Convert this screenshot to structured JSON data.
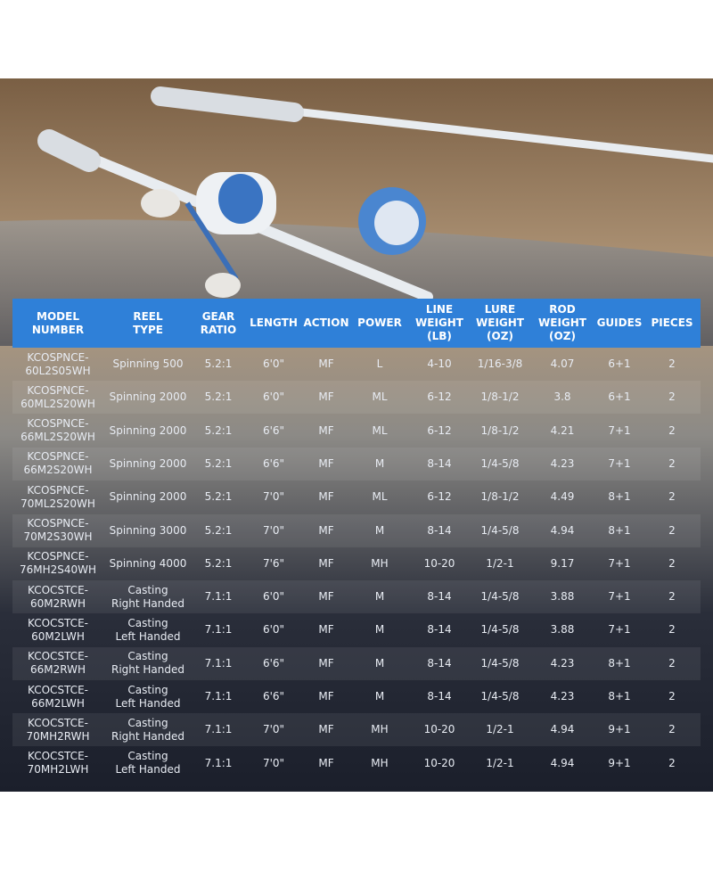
{
  "table": {
    "header": [
      [
        "MODEL",
        "NUMBER"
      ],
      [
        "REEL",
        "TYPE"
      ],
      [
        "GEAR",
        "RATIO"
      ],
      [
        "LENGTH"
      ],
      [
        "ACTION"
      ],
      [
        "POWER"
      ],
      [
        "LINE",
        "WEIGHT",
        "(LB)"
      ],
      [
        "LURE",
        "WEIGHT",
        "(OZ)"
      ],
      [
        "ROD",
        "WEIGHT",
        "(OZ)"
      ],
      [
        "GUIDES"
      ],
      [
        "PIECES"
      ]
    ],
    "rows": [
      [
        [
          "KCOSPNCE-",
          "60L2S05WH"
        ],
        [
          "Spinning 500"
        ],
        "5.2:1",
        "6'0\"",
        "MF",
        "L",
        "4-10",
        "1/16-3/8",
        4.07,
        "6+1",
        2
      ],
      [
        [
          "KCOSPNCE-",
          "60ML2S20WH"
        ],
        [
          "Spinning 2000"
        ],
        "5.2:1",
        "6'0\"",
        "MF",
        "ML",
        "6-12",
        "1/8-1/2",
        3.8,
        "6+1",
        2
      ],
      [
        [
          "KCOSPNCE-",
          "66ML2S20WH"
        ],
        [
          "Spinning 2000"
        ],
        "5.2:1",
        "6'6\"",
        "MF",
        "ML",
        "6-12",
        "1/8-1/2",
        4.21,
        "7+1",
        2
      ],
      [
        [
          "KCOSPNCE-",
          "66M2S20WH"
        ],
        [
          "Spinning 2000"
        ],
        "5.2:1",
        "6'6\"",
        "MF",
        "M",
        "8-14",
        "1/4-5/8",
        4.23,
        "7+1",
        2
      ],
      [
        [
          "KCOSPNCE-",
          "70ML2S20WH"
        ],
        [
          "Spinning 2000"
        ],
        "5.2:1",
        "7'0\"",
        "MF",
        "ML",
        "6-12",
        "1/8-1/2",
        4.49,
        "8+1",
        2
      ],
      [
        [
          "KCOSPNCE-",
          "70M2S30WH"
        ],
        [
          "Spinning 3000"
        ],
        "5.2:1",
        "7'0\"",
        "MF",
        "M",
        "8-14",
        "1/4-5/8",
        4.94,
        "8+1",
        2
      ],
      [
        [
          "KCOSPNCE-",
          "76MH2S40WH"
        ],
        [
          "Spinning 4000"
        ],
        "5.2:1",
        "7'6\"",
        "MF",
        "MH",
        "10-20",
        "1/2-1",
        9.17,
        "7+1",
        2
      ],
      [
        [
          "KCOCSTCE-",
          "60M2RWH"
        ],
        [
          "Casting",
          "Right Handed"
        ],
        "7.1:1",
        "6'0\"",
        "MF",
        "M",
        "8-14",
        "1/4-5/8",
        3.88,
        "7+1",
        2
      ],
      [
        [
          "KCOCSTCE-",
          "60M2LWH"
        ],
        [
          "Casting",
          "Left Handed"
        ],
        "7.1:1",
        "6'0\"",
        "MF",
        "M",
        "8-14",
        "1/4-5/8",
        3.88,
        "7+1",
        2
      ],
      [
        [
          "KCOCSTCE-",
          "66M2RWH"
        ],
        [
          "Casting",
          "Right Handed"
        ],
        "7.1:1",
        "6'6\"",
        "MF",
        "M",
        "8-14",
        "1/4-5/8",
        4.23,
        "8+1",
        2
      ],
      [
        [
          "KCOCSTCE-",
          "66M2LWH"
        ],
        [
          "Casting",
          "Left Handed"
        ],
        "7.1:1",
        "6'6\"",
        "MF",
        "M",
        "8-14",
        "1/4-5/8",
        4.23,
        "8+1",
        2
      ],
      [
        [
          "KCOCSTCE-",
          "70MH2RWH"
        ],
        [
          "Casting",
          "Right Handed"
        ],
        "7.1:1",
        "7'0\"",
        "MF",
        "MH",
        "10-20",
        "1/2-1",
        4.94,
        "9+1",
        2
      ],
      [
        [
          "KCOCSTCE-",
          "70MH2LWH"
        ],
        [
          "Casting",
          "Left Handed"
        ],
        "7.1:1",
        "7'0\"",
        "MF",
        "MH",
        "10-20",
        "1/2-1",
        4.94,
        "9+1",
        2
      ]
    ]
  }
}
